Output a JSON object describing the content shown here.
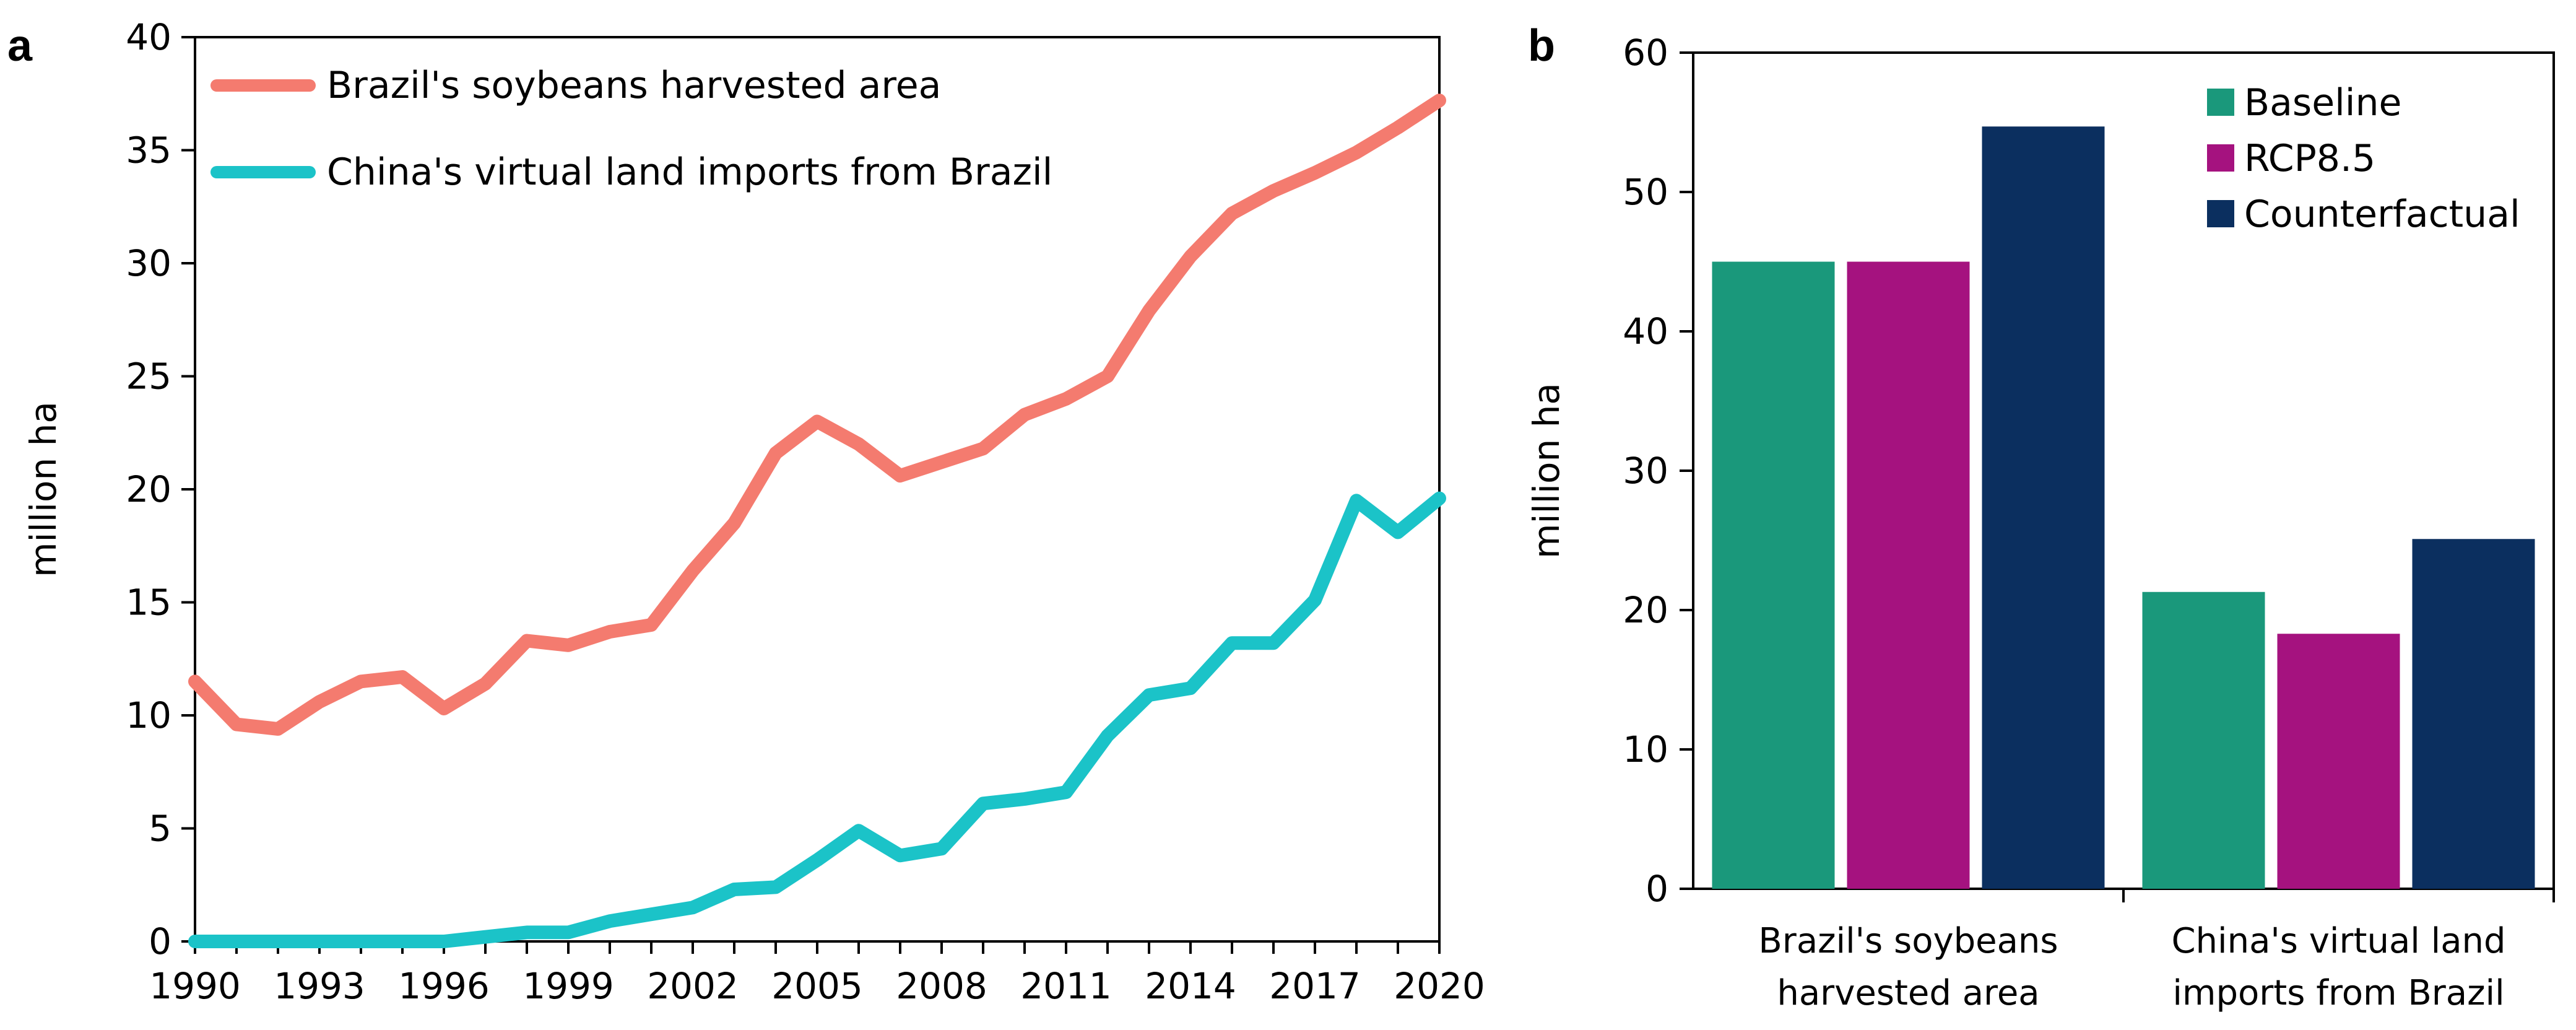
{
  "panels": {
    "a": "a",
    "b": "b"
  },
  "colors": {
    "brazil_line": "#F47B6F",
    "china_line": "#1BC3C8",
    "baseline": "#1A987B",
    "rcp85": "#A5127F",
    "counterfactual": "#0B2F5F"
  },
  "chart_data": [
    {
      "type": "line",
      "panel": "a",
      "title": "",
      "xlabel": "",
      "ylabel": "million ha",
      "xlim": [
        1990,
        2020
      ],
      "ylim": [
        0,
        40
      ],
      "yticks": [
        "0",
        "5",
        "10",
        "15",
        "20",
        "25",
        "30",
        "35",
        "40"
      ],
      "xticks": [
        "1990",
        "1993",
        "1996",
        "1999",
        "2002",
        "2005",
        "2008",
        "2011",
        "2014",
        "2017",
        "2020"
      ],
      "x": [
        1990,
        1991,
        1992,
        1993,
        1994,
        1995,
        1996,
        1997,
        1998,
        1999,
        2000,
        2001,
        2002,
        2003,
        2004,
        2005,
        2006,
        2007,
        2008,
        2009,
        2010,
        2011,
        2012,
        2013,
        2014,
        2015,
        2016,
        2017,
        2018,
        2019,
        2020
      ],
      "series": [
        {
          "name": "Brazil's soybeans harvested area",
          "values": [
            11.5,
            9.6,
            9.4,
            10.6,
            11.5,
            11.7,
            10.3,
            11.4,
            13.3,
            13.1,
            13.7,
            14.0,
            16.4,
            18.5,
            21.6,
            23.0,
            22.0,
            20.6,
            21.2,
            21.8,
            23.3,
            24.0,
            25.0,
            27.9,
            30.3,
            32.2,
            33.2,
            34.0,
            34.9,
            36.0,
            37.2
          ]
        },
        {
          "name": "China's virtual land imports from Brazil",
          "values": [
            0,
            0,
            0,
            0,
            0,
            0,
            0,
            0.2,
            0.4,
            0.4,
            0.9,
            1.2,
            1.5,
            2.3,
            2.4,
            3.6,
            4.9,
            3.8,
            4.1,
            6.1,
            6.3,
            6.6,
            9.1,
            10.9,
            11.2,
            13.2,
            13.2,
            15.1,
            19.5,
            18.1,
            19.6
          ]
        }
      ],
      "legend_position": "top-left"
    },
    {
      "type": "bar",
      "panel": "b",
      "title": "",
      "xlabel": "",
      "ylabel": "million ha",
      "ylim": [
        0,
        60
      ],
      "yticks": [
        "0",
        "10",
        "20",
        "30",
        "40",
        "50",
        "60"
      ],
      "categories": [
        [
          "Brazil's soybeans",
          "harvested area"
        ],
        [
          "China's virtual land",
          "imports from Brazil"
        ]
      ],
      "series": [
        {
          "name": "Baseline",
          "values": [
            45.0,
            21.3
          ]
        },
        {
          "name": "RCP8.5",
          "values": [
            45.0,
            18.3
          ]
        },
        {
          "name": "Counterfactual",
          "values": [
            54.7,
            25.1
          ]
        }
      ],
      "legend_position": "top-right"
    }
  ]
}
